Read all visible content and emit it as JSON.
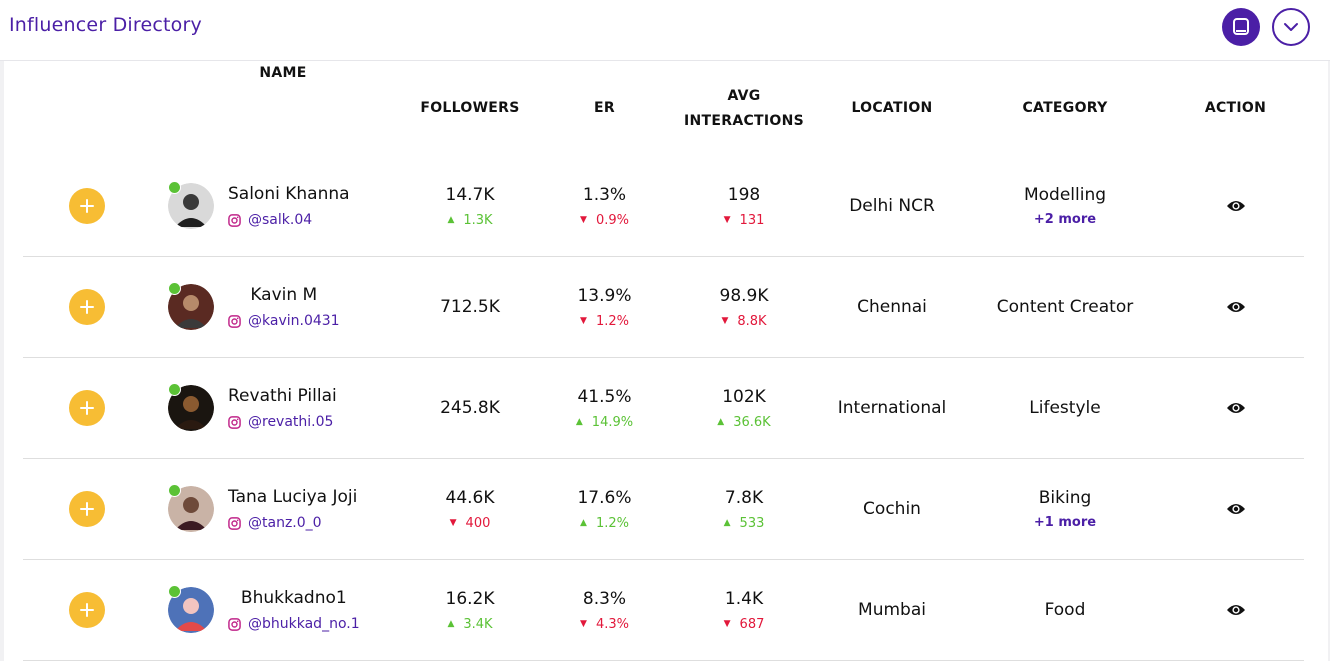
{
  "header": {
    "title": "Influencer Directory"
  },
  "colors": {
    "brand": "#4b1fa6",
    "add": "#f7bd34",
    "up": "#5bc236",
    "down": "#e2183b"
  },
  "columns": {
    "name": "NAME",
    "followers": "FOLLOWERS",
    "er": "ER",
    "avg_line1": "AVG",
    "avg_line2": "INTERACTIONS",
    "location": "LOCATION",
    "category": "CATEGORY",
    "action": "ACTION"
  },
  "rows": [
    {
      "name": "Saloni Khanna",
      "handle": "@salk.04",
      "followers": "14.7K",
      "followers_delta": "1.3K",
      "followers_dir": "up",
      "er": "1.3%",
      "er_delta": "0.9%",
      "er_dir": "down",
      "avg": "198",
      "avg_delta": "131",
      "avg_dir": "down",
      "location": "Delhi NCR",
      "category": "Modelling",
      "more": "+2 more"
    },
    {
      "name": "Kavin M",
      "handle": "@kavin.0431",
      "followers": "712.5K",
      "followers_delta": "",
      "followers_dir": "",
      "er": "13.9%",
      "er_delta": "1.2%",
      "er_dir": "down",
      "avg": "98.9K",
      "avg_delta": "8.8K",
      "avg_dir": "down",
      "location": "Chennai",
      "category": "Content Creator",
      "more": ""
    },
    {
      "name": "Revathi Pillai",
      "handle": "@revathi.05",
      "followers": "245.8K",
      "followers_delta": "",
      "followers_dir": "",
      "er": "41.5%",
      "er_delta": "14.9%",
      "er_dir": "up",
      "avg": "102K",
      "avg_delta": "36.6K",
      "avg_dir": "up",
      "location": "International",
      "category": "Lifestyle",
      "more": ""
    },
    {
      "name": "Tana Luciya Joji",
      "handle": "@tanz.0_0",
      "followers": "44.6K",
      "followers_delta": "400",
      "followers_dir": "down",
      "er": "17.6%",
      "er_delta": "1.2%",
      "er_dir": "up",
      "avg": "7.8K",
      "avg_delta": "533",
      "avg_dir": "up",
      "location": "Cochin",
      "category": "Biking",
      "more": "+1 more"
    },
    {
      "name": "Bhukkadno1",
      "handle": "@bhukkad_no.1",
      "followers": "16.2K",
      "followers_delta": "3.4K",
      "followers_dir": "up",
      "er": "8.3%",
      "er_delta": "4.3%",
      "er_dir": "down",
      "avg": "1.4K",
      "avg_delta": "687",
      "avg_dir": "down",
      "location": "Mumbai",
      "category": "Food",
      "more": ""
    }
  ]
}
